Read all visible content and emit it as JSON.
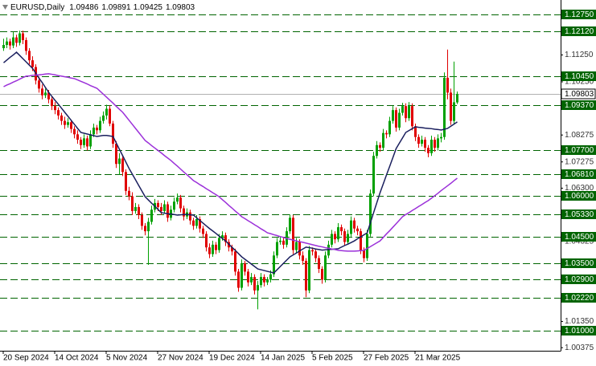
{
  "chart_data": {
    "type": "candlestick",
    "title": "EURUSD,Daily",
    "header_values": [
      1.09486,
      1.09891,
      1.09425,
      1.09803
    ],
    "categories": [
      "20 Sep 2024",
      null,
      null,
      null,
      null,
      null,
      null,
      null,
      null,
      null,
      null,
      null,
      null,
      null,
      null,
      null,
      "14 Oct 2024",
      null,
      null,
      null,
      null,
      null,
      null,
      null,
      null,
      null,
      null,
      null,
      null,
      null,
      null,
      null,
      "5 Nov 2024",
      null,
      null,
      null,
      null,
      null,
      null,
      null,
      null,
      null,
      null,
      null,
      null,
      null,
      null,
      null,
      "27 Nov 2024",
      null,
      null,
      null,
      null,
      null,
      null,
      null,
      null,
      null,
      null,
      null,
      null,
      null,
      null,
      null,
      "19 Dec 2024",
      null,
      null,
      null,
      null,
      null,
      null,
      null,
      null,
      null,
      null,
      null,
      null,
      null,
      null,
      null,
      "14 Jan 2025",
      null,
      null,
      null,
      null,
      null,
      null,
      null,
      null,
      null,
      null,
      null,
      null,
      null,
      null,
      null,
      "5 Feb 2025",
      null,
      null,
      null,
      null,
      null,
      null,
      null,
      null,
      null,
      null,
      null,
      null,
      null,
      null,
      null,
      "27 Feb 2025",
      null,
      null,
      null,
      null,
      null,
      null,
      null,
      null,
      null,
      null,
      null,
      null,
      null,
      null,
      null,
      "21 Mar 2025",
      null,
      null,
      null,
      null,
      null,
      null,
      null,
      null,
      null,
      null,
      null,
      null,
      null
    ],
    "ohlc": [
      [
        1.115,
        1.1185,
        1.114,
        1.1162
      ],
      [
        1.1162,
        1.119,
        1.115,
        1.1175
      ],
      [
        1.1175,
        1.1185,
        1.1145,
        1.116
      ],
      [
        1.116,
        1.121,
        1.115,
        1.119
      ],
      [
        1.119,
        1.12,
        1.1155,
        1.117
      ],
      [
        1.117,
        1.1215,
        1.116,
        1.1205
      ],
      [
        1.1205,
        1.1215,
        1.1165,
        1.118
      ],
      [
        1.118,
        1.119,
        1.1125,
        1.114
      ],
      [
        1.114,
        1.115,
        1.109,
        1.1105
      ],
      [
        1.1105,
        1.112,
        1.1065,
        1.108
      ],
      [
        1.108,
        1.109,
        1.1015,
        1.103
      ],
      [
        1.103,
        1.1045,
        1.0985,
        1.1
      ],
      [
        1.1,
        1.1015,
        1.096,
        1.0975
      ],
      [
        1.0975,
        1.1,
        1.0965,
        1.0985
      ],
      [
        1.0985,
        1.0995,
        1.0945,
        1.096
      ],
      [
        1.096,
        1.097,
        1.092,
        1.0935
      ],
      [
        1.0935,
        1.095,
        1.0905,
        1.092
      ],
      [
        1.092,
        1.093,
        1.0885,
        1.09
      ],
      [
        1.09,
        1.091,
        1.0865,
        1.088
      ],
      [
        1.088,
        1.0895,
        1.085,
        1.0865
      ],
      [
        1.0865,
        1.089,
        1.0855,
        1.0875
      ],
      [
        1.0875,
        1.0885,
        1.0835,
        1.085
      ],
      [
        1.085,
        1.086,
        1.0815,
        1.083
      ],
      [
        1.083,
        1.0845,
        1.0795,
        1.081
      ],
      [
        1.081,
        1.082,
        1.0775,
        1.079
      ],
      [
        1.079,
        1.083,
        1.078,
        1.0815
      ],
      [
        1.0815,
        1.0825,
        1.077,
        1.0785
      ],
      [
        1.0785,
        1.0845,
        1.0775,
        1.083
      ],
      [
        1.083,
        1.087,
        1.082,
        1.0855
      ],
      [
        1.0855,
        1.0865,
        1.083,
        1.0845
      ],
      [
        1.0845,
        1.0895,
        1.0835,
        1.088
      ],
      [
        1.088,
        1.0915,
        1.087,
        1.09
      ],
      [
        1.09,
        1.094,
        1.0885,
        1.0925
      ],
      [
        1.0925,
        1.0937,
        1.086,
        1.087
      ],
      [
        1.087,
        1.088,
        1.078,
        1.0795
      ],
      [
        1.0795,
        1.0805,
        1.0705,
        1.072
      ],
      [
        1.072,
        1.076,
        1.068,
        1.074
      ],
      [
        1.074,
        1.075,
        1.0675,
        1.069
      ],
      [
        1.069,
        1.07,
        1.0605,
        1.062
      ],
      [
        1.062,
        1.0635,
        1.0585,
        1.06
      ],
      [
        1.06,
        1.0615,
        1.053,
        1.0545
      ],
      [
        1.0545,
        1.0575,
        1.0535,
        1.056
      ],
      [
        1.056,
        1.057,
        1.0515,
        1.053
      ],
      [
        1.053,
        1.054,
        1.0475,
        1.049
      ],
      [
        1.049,
        1.05,
        1.0455,
        1.047
      ],
      [
        1.047,
        1.052,
        1.0345,
        1.0505
      ],
      [
        1.0505,
        1.0565,
        1.0495,
        1.055
      ],
      [
        1.055,
        1.059,
        1.054,
        1.0575
      ],
      [
        1.0575,
        1.0585,
        1.0545,
        1.056
      ],
      [
        1.056,
        1.0575,
        1.053,
        1.0545
      ],
      [
        1.0545,
        1.0585,
        1.0535,
        1.057
      ],
      [
        1.057,
        1.058,
        1.0505,
        1.052
      ],
      [
        1.052,
        1.0565,
        1.051,
        1.055
      ],
      [
        1.055,
        1.0595,
        1.054,
        1.058
      ],
      [
        1.058,
        1.061,
        1.057,
        1.0595
      ],
      [
        1.0595,
        1.0605,
        1.054,
        1.0555
      ],
      [
        1.0555,
        1.0565,
        1.051,
        1.0525
      ],
      [
        1.0525,
        1.0555,
        1.0515,
        1.054
      ],
      [
        1.054,
        1.055,
        1.0495,
        1.051
      ],
      [
        1.051,
        1.052,
        1.0475,
        1.049
      ],
      [
        1.049,
        1.053,
        1.048,
        1.0515
      ],
      [
        1.0515,
        1.0525,
        1.0465,
        1.048
      ],
      [
        1.048,
        1.049,
        1.0445,
        1.046
      ],
      [
        1.046,
        1.047,
        1.0395,
        1.041
      ],
      [
        1.041,
        1.0425,
        1.037,
        1.0385
      ],
      [
        1.0385,
        1.0435,
        1.0375,
        1.042
      ],
      [
        1.042,
        1.043,
        1.0385,
        1.04
      ],
      [
        1.04,
        1.046,
        1.039,
        1.0445
      ],
      [
        1.0445,
        1.047,
        1.0435,
        1.0455
      ],
      [
        1.0455,
        1.0465,
        1.0415,
        1.043
      ],
      [
        1.043,
        1.044,
        1.0395,
        1.041
      ],
      [
        1.041,
        1.042,
        1.038,
        1.0395
      ],
      [
        1.0395,
        1.0405,
        1.0305,
        1.032
      ],
      [
        1.032,
        1.033,
        1.0245,
        1.026
      ],
      [
        1.026,
        1.0365,
        1.025,
        1.035
      ],
      [
        1.035,
        1.036,
        1.0305,
        1.032
      ],
      [
        1.032,
        1.033,
        1.0265,
        1.028
      ],
      [
        1.028,
        1.0315,
        1.027,
        1.03
      ],
      [
        1.03,
        1.031,
        1.0235,
        1.025
      ],
      [
        1.025,
        1.0285,
        1.018,
        1.027
      ],
      [
        1.027,
        1.0315,
        1.026,
        1.03
      ],
      [
        1.03,
        1.031,
        1.0265,
        1.028
      ],
      [
        1.028,
        1.03,
        1.027,
        1.029
      ],
      [
        1.029,
        1.0325,
        1.028,
        1.031
      ],
      [
        1.031,
        1.0395,
        1.03,
        1.038
      ],
      [
        1.038,
        1.0445,
        1.037,
        1.043
      ],
      [
        1.043,
        1.045,
        1.042,
        1.0435
      ],
      [
        1.0435,
        1.0445,
        1.0405,
        1.042
      ],
      [
        1.042,
        1.0485,
        1.041,
        1.047
      ],
      [
        1.047,
        1.0532,
        1.046,
        1.052
      ],
      [
        1.052,
        1.053,
        1.0385,
        1.04
      ],
      [
        1.04,
        1.0445,
        1.039,
        1.043
      ],
      [
        1.043,
        1.044,
        1.0365,
        1.038
      ],
      [
        1.038,
        1.0395,
        1.0345,
        1.036
      ],
      [
        1.036,
        1.037,
        1.0225,
        1.025
      ],
      [
        1.025,
        1.0415,
        1.024,
        1.04
      ],
      [
        1.04,
        1.041,
        1.038,
        1.0395
      ],
      [
        1.0395,
        1.0405,
        1.0355,
        1.037
      ],
      [
        1.037,
        1.038,
        1.0315,
        1.033
      ],
      [
        1.033,
        1.034,
        1.0275,
        1.029
      ],
      [
        1.029,
        1.0395,
        1.028,
        1.038
      ],
      [
        1.038,
        1.0435,
        1.037,
        1.042
      ],
      [
        1.042,
        1.0475,
        1.041,
        1.046
      ],
      [
        1.046,
        1.047,
        1.0425,
        1.044
      ],
      [
        1.044,
        1.05,
        1.043,
        1.0485
      ],
      [
        1.0485,
        1.0495,
        1.0455,
        1.047
      ],
      [
        1.047,
        1.048,
        1.0415,
        1.043
      ],
      [
        1.043,
        1.0475,
        1.042,
        1.046
      ],
      [
        1.046,
        1.0525,
        1.045,
        1.051
      ],
      [
        1.051,
        1.052,
        1.0465,
        1.048
      ],
      [
        1.048,
        1.049,
        1.0455,
        1.047
      ],
      [
        1.047,
        1.048,
        1.0385,
        1.04
      ],
      [
        1.04,
        1.041,
        1.0355,
        1.037
      ],
      [
        1.037,
        1.0475,
        1.036,
        1.046
      ],
      [
        1.046,
        1.0625,
        1.045,
        1.061
      ],
      [
        1.061,
        1.0765,
        1.06,
        1.075
      ],
      [
        1.075,
        1.0805,
        1.074,
        1.079
      ],
      [
        1.079,
        1.08,
        1.0765,
        1.078
      ],
      [
        1.078,
        1.085,
        1.077,
        1.0835
      ],
      [
        1.0835,
        1.0845,
        1.0815,
        1.083
      ],
      [
        1.083,
        1.0895,
        1.082,
        1.088
      ],
      [
        1.088,
        1.0935,
        1.087,
        1.092
      ],
      [
        1.092,
        1.093,
        1.084,
        1.0855
      ],
      [
        1.0855,
        1.0925,
        1.0845,
        1.091
      ],
      [
        1.091,
        1.0947,
        1.09,
        1.0935
      ],
      [
        1.0935,
        1.0945,
        1.0875,
        1.089
      ],
      [
        1.089,
        1.095,
        1.088,
        1.0935
      ],
      [
        1.0935,
        1.0945,
        1.0845,
        1.086
      ],
      [
        1.086,
        1.087,
        1.0805,
        1.082
      ],
      [
        1.082,
        1.083,
        1.078,
        1.0795
      ],
      [
        1.0795,
        1.0825,
        1.0785,
        1.081
      ],
      [
        1.081,
        1.082,
        1.0765,
        1.078
      ],
      [
        1.078,
        1.079,
        1.0745,
        1.076
      ],
      [
        1.076,
        1.0825,
        1.075,
        1.081
      ],
      [
        1.081,
        1.082,
        1.0765,
        1.078
      ],
      [
        1.078,
        1.083,
        1.077,
        1.0815
      ],
      [
        1.0815,
        1.0835,
        1.08,
        1.082
      ],
      [
        1.082,
        1.106,
        1.081,
        1.104
      ],
      [
        1.104,
        1.1145,
        1.096,
        1.0985
      ],
      [
        1.0985,
        1.1,
        1.0865,
        1.088
      ],
      [
        1.088,
        1.11,
        1.087,
        1.0949
      ],
      [
        1.09486,
        1.09891,
        1.09425,
        1.09803
      ]
    ],
    "up_color": "#00a000",
    "down_color": "#e00000",
    "series": [
      {
        "color": "#1a1f5e",
        "values": [
          1.1096,
          1.1106,
          1.1116,
          1.1125,
          1.1135,
          1.1123,
          1.1111,
          1.1099,
          1.1087,
          1.1075,
          1.1057,
          1.1039,
          1.1022,
          1.1004,
          1.0986,
          1.0971,
          1.0956,
          1.0942,
          1.0927,
          1.0912,
          1.0897,
          1.0882,
          1.0867,
          1.0852,
          1.0837,
          1.0834,
          1.0831,
          1.0828,
          1.0825,
          1.0822,
          1.0824,
          1.0826,
          1.0826,
          1.0824,
          1.0822,
          1.0798,
          1.0774,
          1.0751,
          1.0727,
          1.0703,
          1.0682,
          1.0661,
          1.064,
          1.0619,
          1.0598,
          1.0586,
          1.0574,
          1.0563,
          1.0551,
          1.0539,
          1.0537,
          1.0535,
          1.0534,
          1.0532,
          1.053,
          1.0531,
          1.0532,
          1.0532,
          1.0531,
          1.053,
          1.052,
          1.051,
          1.05,
          1.049,
          1.048,
          1.0471,
          1.0462,
          1.0452,
          1.0443,
          1.0434,
          1.0422,
          1.041,
          1.0399,
          1.0387,
          1.0375,
          1.0366,
          1.0357,
          1.0348,
          1.0339,
          1.033,
          1.0327,
          1.0324,
          1.0321,
          1.0318,
          1.0315,
          1.0327,
          1.0339,
          1.0351,
          1.0363,
          1.0375,
          1.0382,
          1.0389,
          1.0397,
          1.0404,
          1.0411,
          1.0409,
          1.0407,
          1.0404,
          1.0402,
          1.04,
          1.0401,
          1.0402,
          1.0403,
          1.0404,
          1.0405,
          1.0411,
          1.0417,
          1.0422,
          1.0428,
          1.0434,
          1.0442,
          1.0449,
          1.0457,
          1.0464,
          1.0501,
          1.0539,
          1.0576,
          1.0613,
          1.0646,
          1.0679,
          1.0711,
          1.0744,
          1.0777,
          1.0797,
          1.0817,
          1.0837,
          1.0844,
          1.0851,
          1.0858,
          1.0856,
          1.0855,
          1.0853,
          1.0852,
          1.0851,
          1.0849,
          1.0848,
          1.0846,
          1.0849,
          1.0852,
          1.086,
          1.0868,
          1.0876
        ]
      },
      {
        "color": "#9b30d9",
        "values": [
          1.1007,
          1.1013,
          1.1018,
          1.1024,
          1.1029,
          1.1035,
          1.1041,
          1.1046,
          1.1047,
          1.1049,
          1.105,
          1.1051,
          1.1052,
          1.1054,
          1.1055,
          1.1053,
          1.1051,
          1.1048,
          1.1046,
          1.1044,
          1.1042,
          1.1039,
          1.1037,
          1.1032,
          1.1027,
          1.1022,
          1.1017,
          1.1011,
          1.1006,
          1.1001,
          1.099,
          1.0979,
          1.0968,
          1.0957,
          1.0946,
          1.0934,
          1.0923,
          1.0912,
          1.0897,
          1.0882,
          1.0867,
          1.0852,
          1.0837,
          1.0822,
          1.0807,
          1.0798,
          1.0788,
          1.0779,
          1.077,
          1.0761,
          1.0751,
          1.0742,
          1.0733,
          1.0722,
          1.0712,
          1.0701,
          1.069,
          1.068,
          1.0669,
          1.0658,
          1.0651,
          1.0643,
          1.0636,
          1.0628,
          1.0621,
          1.0613,
          1.0606,
          1.0598,
          1.0587,
          1.0577,
          1.0566,
          1.0556,
          1.0545,
          1.0535,
          1.0524,
          1.0517,
          1.0509,
          1.0502,
          1.0494,
          1.0487,
          1.0479,
          1.0472,
          1.0464,
          1.0461,
          1.0457,
          1.0454,
          1.045,
          1.0447,
          1.0443,
          1.044,
          1.0437,
          1.0434,
          1.0431,
          1.0429,
          1.0426,
          1.0423,
          1.042,
          1.0417,
          1.0414,
          1.0412,
          1.0409,
          1.0407,
          1.0404,
          1.0402,
          1.0399,
          1.0398,
          1.0397,
          1.0396,
          1.0396,
          1.0396,
          1.0397,
          1.0398,
          1.0399,
          1.0406,
          1.0413,
          1.042,
          1.0427,
          1.0434,
          1.0447,
          1.046,
          1.0472,
          1.0485,
          1.0498,
          1.0511,
          1.0524,
          1.0532,
          1.0539,
          1.0547,
          1.0554,
          1.0562,
          1.0569,
          1.0577,
          1.0584,
          1.0593,
          1.0602,
          1.0611,
          1.0621,
          1.063,
          1.0639,
          1.0648,
          1.0658,
          1.0667
        ]
      }
    ],
    "ylim": [
      1.0029,
      1.1329
    ],
    "yticks": [
      {
        "value": 1.1125,
        "label": "1.11250"
      },
      {
        "value": 1.1025,
        "label": "1.10250"
      },
      {
        "value": 1.08275,
        "label": "1.08275"
      },
      {
        "value": 1.07275,
        "label": "1.07275"
      },
      {
        "value": 1.063,
        "label": "1.06300"
      },
      {
        "value": 1.04325,
        "label": "1.04325"
      },
      {
        "value": 1.0135,
        "label": "1.01350"
      },
      {
        "value": 1.00375,
        "label": "1.00375"
      }
    ],
    "levels": [
      {
        "value": 1.1275,
        "label": "1.12750"
      },
      {
        "value": 1.1212,
        "label": "1.12120"
      },
      {
        "value": 1.1045,
        "label": "1.10450"
      },
      {
        "value": 1.0937,
        "label": "1.09370"
      },
      {
        "value": 1.077,
        "label": "1.07700"
      },
      {
        "value": 1.0681,
        "label": "1.06810"
      },
      {
        "value": 1.06,
        "label": "1.06000"
      },
      {
        "value": 1.0533,
        "label": "1.05330"
      },
      {
        "value": 1.045,
        "label": "1.04500"
      },
      {
        "value": 1.035,
        "label": "1.03500"
      },
      {
        "value": 1.029,
        "label": "1.02900"
      },
      {
        "value": 1.0222,
        "label": "1.02220"
      },
      {
        "value": 1.01,
        "label": "1.01000"
      }
    ],
    "level_color": "#006400",
    "last_price": 1.09803,
    "grid": false
  }
}
